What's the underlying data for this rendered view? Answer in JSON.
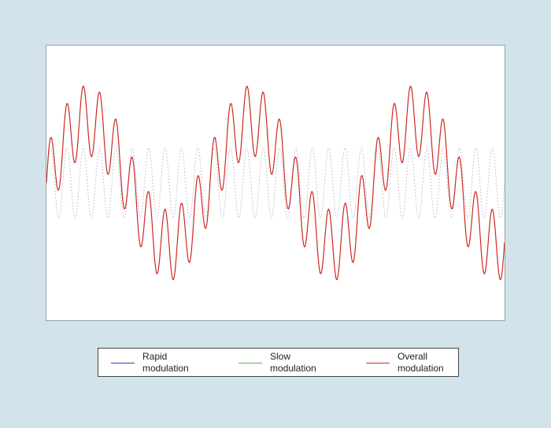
{
  "chart_data": {
    "type": "line",
    "title": "",
    "xlabel": "",
    "ylabel": "",
    "grid": false,
    "legend_position": "bottom",
    "series": [
      {
        "name": "Rapid\nmodulation",
        "color": "#3a3aa8",
        "function": "rapid",
        "cycles": 28,
        "amplitude": 1.0,
        "style": "dotted-faint"
      },
      {
        "name": "Slow\nmodulation",
        "color": "#5fb35f",
        "function": "slow",
        "cycles": 2.8,
        "amplitude": 1.77,
        "style": "hidden"
      },
      {
        "name": "Overall\nmodulation",
        "color": "#cc2a22",
        "function": "rapid+slow",
        "style": "solid"
      }
    ],
    "x_range": [
      0,
      1
    ],
    "y_range": [
      -3.9,
      3.9
    ]
  }
}
